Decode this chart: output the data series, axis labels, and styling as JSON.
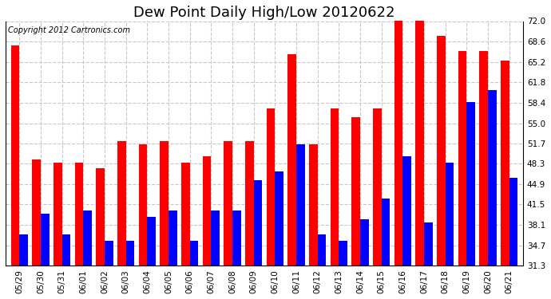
{
  "title": "Dew Point Daily High/Low 20120622",
  "copyright": "Copyright 2012 Cartronics.com",
  "labels": [
    "05/29",
    "05/30",
    "05/31",
    "06/01",
    "06/02",
    "06/03",
    "06/04",
    "06/05",
    "06/06",
    "06/07",
    "06/08",
    "06/09",
    "06/10",
    "06/11",
    "06/12",
    "06/13",
    "06/14",
    "06/15",
    "06/16",
    "06/17",
    "06/18",
    "06/19",
    "06/20",
    "06/21"
  ],
  "highs": [
    68.0,
    49.0,
    48.5,
    48.5,
    47.5,
    52.0,
    51.5,
    52.0,
    48.5,
    49.5,
    52.0,
    52.0,
    57.5,
    66.5,
    51.5,
    57.5,
    56.0,
    57.5,
    72.5,
    72.5,
    69.5,
    67.0,
    67.0,
    65.5
  ],
  "lows": [
    36.5,
    40.0,
    36.5,
    40.5,
    35.5,
    35.5,
    39.5,
    40.5,
    35.5,
    40.5,
    40.5,
    45.5,
    47.0,
    51.5,
    36.5,
    35.5,
    39.0,
    42.5,
    49.5,
    38.5,
    48.5,
    58.5,
    60.5,
    46.0
  ],
  "bar_color_high": "#ff0000",
  "bar_color_low": "#0000ff",
  "bg_color": "#ffffff",
  "plot_bg_color": "#ffffff",
  "grid_color": "#c8c8c8",
  "yticks": [
    31.3,
    34.7,
    38.1,
    41.5,
    44.9,
    48.3,
    51.7,
    55.0,
    58.4,
    61.8,
    65.2,
    68.6,
    72.0
  ],
  "ymin": 31.3,
  "ymax": 72.0,
  "title_fontsize": 13,
  "tick_fontsize": 7.5,
  "copyright_fontsize": 7
}
